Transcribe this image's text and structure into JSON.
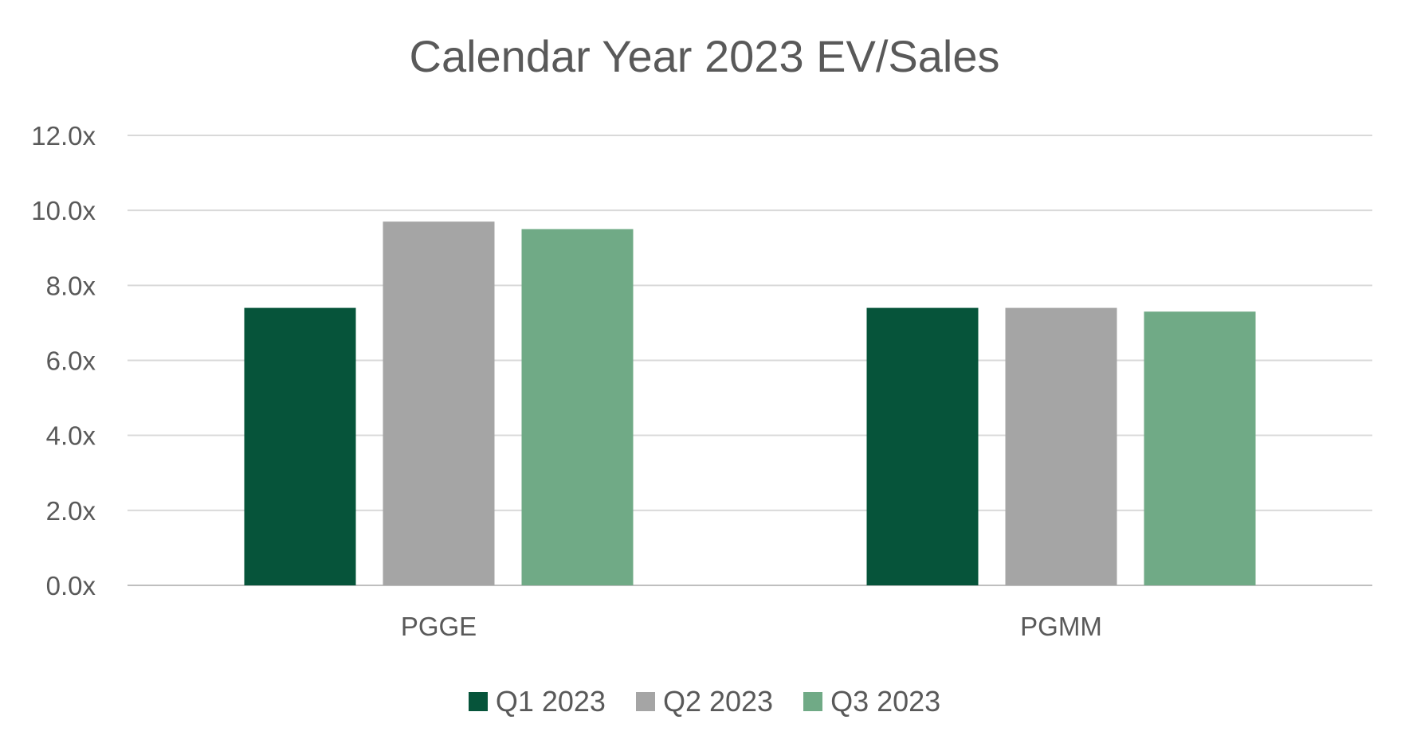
{
  "chart_data": {
    "type": "bar",
    "title": "Calendar Year 2023 EV/Sales",
    "categories": [
      "PGGE",
      "PGMM"
    ],
    "series": [
      {
        "name": "Q1 2023",
        "values": [
          7.4,
          7.4
        ],
        "color": "#06543A"
      },
      {
        "name": "Q2 2023",
        "values": [
          9.7,
          7.4
        ],
        "color": "#A5A5A5"
      },
      {
        "name": "Q3 2023",
        "values": [
          9.5,
          7.3
        ],
        "color": "#70AA86"
      }
    ],
    "ylim": [
      0,
      12
    ],
    "yticks": [
      "0.0x",
      "2.0x",
      "4.0x",
      "6.0x",
      "8.0x",
      "10.0x",
      "12.0x"
    ],
    "grid": true,
    "legend": "bottom"
  }
}
